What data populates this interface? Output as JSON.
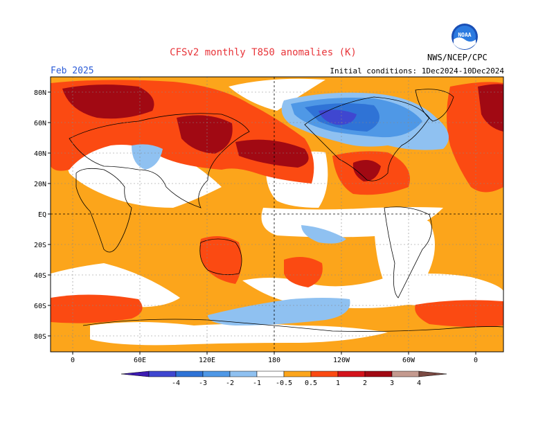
{
  "header": {
    "title": "CFSv2 monthly T850 anomalies (K)",
    "target_month": "Feb 2025",
    "initial_conditions": "Initial conditions: 1Dec2024-10Dec2024",
    "agency": "NWS/NCEP/CPC",
    "logo_text": "NOAA"
  },
  "map": {
    "lon_labels": [
      "0",
      "60E",
      "120E",
      "180",
      "120W",
      "60W",
      "0"
    ],
    "lat_labels": [
      "80N",
      "60N",
      "40N",
      "20N",
      "EQ",
      "20S",
      "40S",
      "60S",
      "80S"
    ]
  },
  "colorbar": {
    "tick_labels": [
      "-4",
      "-3",
      "-2",
      "-1",
      "-0.5",
      "0.5",
      "1",
      "2",
      "3",
      "4"
    ],
    "colors": [
      "#3d1bb2",
      "#3f47d0",
      "#2f73d6",
      "#4f98e6",
      "#8fc1f1",
      "#ffffff",
      "#fca51b",
      "#fb4a12",
      "#d4131b",
      "#a10913",
      "#c49a8f",
      "#7b4a43"
    ]
  }
}
